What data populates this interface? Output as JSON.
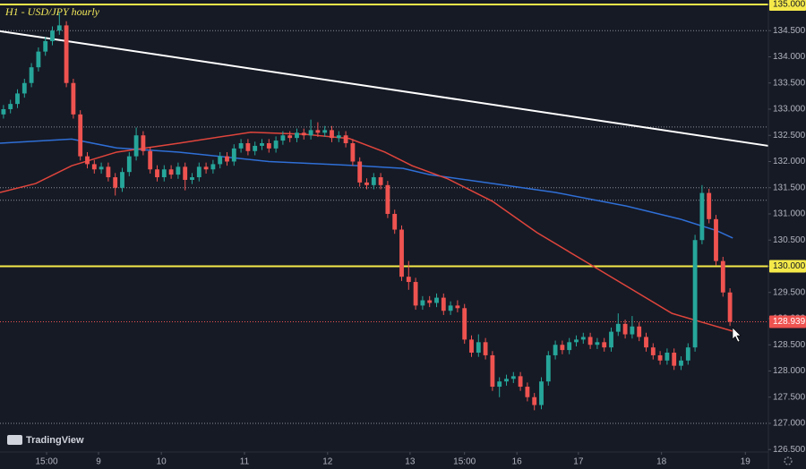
{
  "chart_data": {
    "type": "candlestick",
    "title": "H1 - USD/JPY hourly",
    "watermark": "TradingView",
    "up_color": "#26a69a",
    "down_color": "#ef5350",
    "xlim": [
      -0.5,
      109.5
    ],
    "xticks": [
      {
        "value": 6.17,
        "label": "15:00"
      },
      {
        "value": 13.6,
        "label": "9"
      },
      {
        "value": 22.6,
        "label": "10"
      },
      {
        "value": 34.5,
        "label": "11"
      },
      {
        "value": 46.4,
        "label": "12"
      },
      {
        "value": 58.2,
        "label": "13"
      },
      {
        "value": 66.0,
        "label": "15:00"
      },
      {
        "value": 73.5,
        "label": "16"
      },
      {
        "value": 82.3,
        "label": "17"
      },
      {
        "value": 94.2,
        "label": "18"
      },
      {
        "value": 106.2,
        "label": "19"
      }
    ],
    "ylim": [
      126.453,
      135.085
    ],
    "yticks": [
      {
        "value": 126.5,
        "label": "126.500"
      },
      {
        "value": 127.0,
        "label": "127.000"
      },
      {
        "value": 127.5,
        "label": "127.500"
      },
      {
        "value": 128.0,
        "label": "128.000"
      },
      {
        "value": 128.5,
        "label": "128.500"
      },
      {
        "value": 129.0,
        "label": "129.000"
      },
      {
        "value": 129.5,
        "label": "129.500"
      },
      {
        "value": 130.0,
        "label": "130.000",
        "color": "#f5e94a"
      },
      {
        "value": 130.5,
        "label": "130.500"
      },
      {
        "value": 131.0,
        "label": "131.000"
      },
      {
        "value": 131.5,
        "label": "131.500"
      },
      {
        "value": 132.0,
        "label": "132.000"
      },
      {
        "value": 132.5,
        "label": "132.500"
      },
      {
        "value": 133.0,
        "label": "133.000"
      },
      {
        "value": 133.5,
        "label": "133.500"
      },
      {
        "value": 134.0,
        "label": "134.000"
      },
      {
        "value": 134.5,
        "label": "134.500"
      },
      {
        "value": 135.0,
        "label": "135.000",
        "color": "#f5e94a"
      }
    ],
    "last_price": {
      "value": 128.939,
      "label": "128.939",
      "color": "#ef5350"
    },
    "levels": [
      {
        "value": 135.0,
        "color": "#f5e94a",
        "style": "solid"
      },
      {
        "value": 130.0,
        "color": "#f5e94a",
        "style": "solid"
      },
      {
        "value": 134.5,
        "color": "#8a8e99",
        "style": "dotted"
      },
      {
        "value": 132.66,
        "color": "#8a8e99",
        "style": "dotted"
      },
      {
        "value": 131.5,
        "color": "#8a8e99",
        "style": "dotted"
      },
      {
        "value": 131.26,
        "color": "#8a8e99",
        "style": "dotted"
      },
      {
        "value": 127.0,
        "color": "#8a8e99",
        "style": "dotted"
      }
    ],
    "lines": [
      {
        "color": "#2f6fd6",
        "x": [
          -0.5,
          9.76,
          16.2,
          25.1,
          38.0,
          50.8,
          57.2,
          61.0,
          70.0,
          79.0,
          89.2,
          96.9,
          102.1,
          104.4
        ],
        "values": [
          132.35,
          132.43,
          132.26,
          132.18,
          132.0,
          131.92,
          131.87,
          131.75,
          131.58,
          131.41,
          131.15,
          130.9,
          130.68,
          130.54
        ]
      },
      {
        "color": "#e0453c",
        "x": [
          -0.5,
          4.6,
          9.76,
          16.2,
          25.1,
          35.4,
          43.1,
          49.5,
          54.6,
          58.5,
          63.6,
          70.0,
          76.4,
          82.8,
          89.2,
          95.7,
          100.8,
          104.4
        ],
        "values": [
          131.41,
          131.58,
          131.92,
          132.18,
          132.35,
          132.56,
          132.52,
          132.44,
          132.18,
          131.92,
          131.67,
          131.24,
          130.64,
          130.13,
          129.62,
          129.1,
          128.9,
          128.76
        ]
      },
      {
        "color": "#ffffff",
        "x": [
          -0.5,
          109.5
        ],
        "values": [
          134.49,
          132.3
        ]
      }
    ],
    "candles": [
      [
        132.9,
        133.08,
        132.82,
        133.0
      ],
      [
        133.0,
        133.18,
        132.92,
        133.1
      ],
      [
        133.1,
        133.38,
        133.02,
        133.3
      ],
      [
        133.3,
        133.58,
        133.22,
        133.5
      ],
      [
        133.5,
        133.88,
        133.42,
        133.8
      ],
      [
        133.8,
        134.18,
        133.72,
        134.1
      ],
      [
        134.1,
        134.38,
        134.02,
        134.3
      ],
      [
        134.3,
        134.58,
        134.22,
        134.5
      ],
      [
        134.5,
        134.85,
        134.42,
        134.6
      ],
      [
        134.6,
        134.68,
        133.42,
        133.5
      ],
      [
        133.5,
        133.58,
        132.82,
        132.9
      ],
      [
        132.9,
        132.98,
        132.02,
        132.1
      ],
      [
        132.1,
        132.18,
        131.87,
        131.95
      ],
      [
        131.95,
        132.03,
        131.77,
        131.85
      ],
      [
        131.85,
        131.98,
        131.77,
        131.9
      ],
      [
        131.9,
        131.98,
        131.62,
        131.7
      ],
      [
        131.7,
        131.78,
        131.35,
        131.5
      ],
      [
        131.5,
        131.88,
        131.42,
        131.8
      ],
      [
        131.8,
        132.18,
        131.72,
        132.1
      ],
      [
        132.1,
        132.65,
        132.02,
        132.5
      ],
      [
        132.5,
        132.58,
        132.12,
        132.2
      ],
      [
        132.2,
        132.28,
        131.77,
        131.85
      ],
      [
        131.85,
        131.93,
        131.62,
        131.7
      ],
      [
        131.7,
        131.93,
        131.62,
        131.85
      ],
      [
        131.85,
        131.93,
        131.67,
        131.75
      ],
      [
        131.75,
        131.98,
        131.67,
        131.9
      ],
      [
        131.9,
        131.98,
        131.45,
        131.65
      ],
      [
        131.65,
        131.78,
        131.57,
        131.7
      ],
      [
        131.7,
        131.98,
        131.62,
        131.9
      ],
      [
        131.9,
        131.98,
        131.77,
        131.85
      ],
      [
        131.85,
        132.03,
        131.77,
        131.95
      ],
      [
        131.95,
        132.18,
        131.87,
        132.1
      ],
      [
        132.1,
        132.18,
        131.92,
        132.0
      ],
      [
        132.0,
        132.33,
        131.92,
        132.25
      ],
      [
        132.25,
        132.43,
        132.17,
        132.35
      ],
      [
        132.35,
        132.43,
        132.12,
        132.2
      ],
      [
        132.2,
        132.38,
        132.12,
        132.3
      ],
      [
        132.3,
        132.43,
        132.22,
        132.35
      ],
      [
        132.35,
        132.43,
        132.17,
        132.25
      ],
      [
        132.25,
        132.48,
        132.17,
        132.4
      ],
      [
        132.4,
        132.58,
        132.32,
        132.5
      ],
      [
        132.5,
        132.58,
        132.37,
        132.45
      ],
      [
        132.45,
        132.63,
        132.37,
        132.55
      ],
      [
        132.55,
        132.63,
        132.42,
        132.5
      ],
      [
        132.5,
        132.8,
        132.42,
        132.6
      ],
      [
        132.6,
        132.75,
        132.47,
        132.55
      ],
      [
        132.55,
        132.68,
        132.47,
        132.6
      ],
      [
        132.6,
        132.68,
        132.37,
        132.45
      ],
      [
        132.45,
        132.58,
        132.37,
        132.5
      ],
      [
        132.5,
        132.58,
        132.27,
        132.35
      ],
      [
        132.35,
        132.43,
        131.92,
        132.0
      ],
      [
        132.0,
        132.08,
        131.52,
        131.6
      ],
      [
        131.6,
        131.68,
        131.47,
        131.55
      ],
      [
        131.55,
        131.78,
        131.47,
        131.7
      ],
      [
        131.7,
        131.78,
        131.47,
        131.55
      ],
      [
        131.55,
        131.63,
        130.92,
        131.0
      ],
      [
        131.0,
        131.08,
        130.62,
        130.7
      ],
      [
        130.7,
        130.78,
        129.72,
        129.8
      ],
      [
        129.8,
        130.1,
        129.55,
        129.7
      ],
      [
        129.7,
        129.78,
        129.17,
        129.25
      ],
      [
        129.25,
        129.43,
        129.17,
        129.35
      ],
      [
        129.35,
        129.43,
        129.22,
        129.3
      ],
      [
        129.3,
        129.48,
        129.22,
        129.4
      ],
      [
        129.4,
        129.48,
        129.07,
        129.15
      ],
      [
        129.15,
        129.33,
        129.07,
        129.25
      ],
      [
        129.25,
        129.35,
        129.12,
        129.2
      ],
      [
        129.2,
        129.28,
        128.52,
        128.6
      ],
      [
        128.6,
        128.68,
        128.27,
        128.35
      ],
      [
        128.35,
        128.7,
        128.27,
        128.55
      ],
      [
        128.55,
        128.63,
        128.22,
        128.3
      ],
      [
        128.3,
        128.38,
        127.62,
        127.7
      ],
      [
        127.7,
        127.88,
        127.5,
        127.8
      ],
      [
        127.8,
        127.93,
        127.72,
        127.85
      ],
      [
        127.85,
        127.98,
        127.77,
        127.9
      ],
      [
        127.9,
        127.98,
        127.62,
        127.7
      ],
      [
        127.7,
        127.78,
        127.42,
        127.5
      ],
      [
        127.5,
        127.58,
        127.25,
        127.35
      ],
      [
        127.35,
        127.88,
        127.27,
        127.8
      ],
      [
        127.8,
        128.38,
        127.72,
        128.3
      ],
      [
        128.3,
        128.58,
        128.22,
        128.5
      ],
      [
        128.5,
        128.58,
        128.32,
        128.4
      ],
      [
        128.4,
        128.63,
        128.32,
        128.55
      ],
      [
        128.55,
        128.68,
        128.47,
        128.6
      ],
      [
        128.6,
        128.73,
        128.52,
        128.65
      ],
      [
        128.65,
        128.73,
        128.42,
        128.5
      ],
      [
        128.5,
        128.63,
        128.42,
        128.55
      ],
      [
        128.55,
        128.63,
        128.37,
        128.45
      ],
      [
        128.45,
        128.83,
        128.37,
        128.75
      ],
      [
        128.75,
        129.1,
        128.67,
        128.9
      ],
      [
        128.9,
        128.98,
        128.62,
        128.7
      ],
      [
        128.7,
        129.05,
        128.62,
        128.85
      ],
      [
        128.85,
        128.93,
        128.57,
        128.65
      ],
      [
        128.65,
        128.73,
        128.37,
        128.45
      ],
      [
        128.45,
        128.53,
        128.22,
        128.3
      ],
      [
        128.3,
        128.38,
        128.12,
        128.2
      ],
      [
        128.2,
        128.43,
        128.12,
        128.35
      ],
      [
        128.35,
        128.43,
        128.02,
        128.1
      ],
      [
        128.1,
        128.28,
        128.02,
        128.2
      ],
      [
        128.2,
        128.53,
        128.12,
        128.45
      ],
      [
        128.45,
        130.6,
        128.37,
        130.5
      ],
      [
        130.5,
        131.55,
        130.42,
        131.4
      ],
      [
        131.4,
        131.48,
        130.82,
        130.9
      ],
      [
        130.9,
        130.98,
        130.02,
        130.1
      ],
      [
        130.1,
        130.18,
        129.42,
        129.5
      ],
      [
        129.5,
        129.58,
        128.86,
        128.939
      ]
    ]
  }
}
